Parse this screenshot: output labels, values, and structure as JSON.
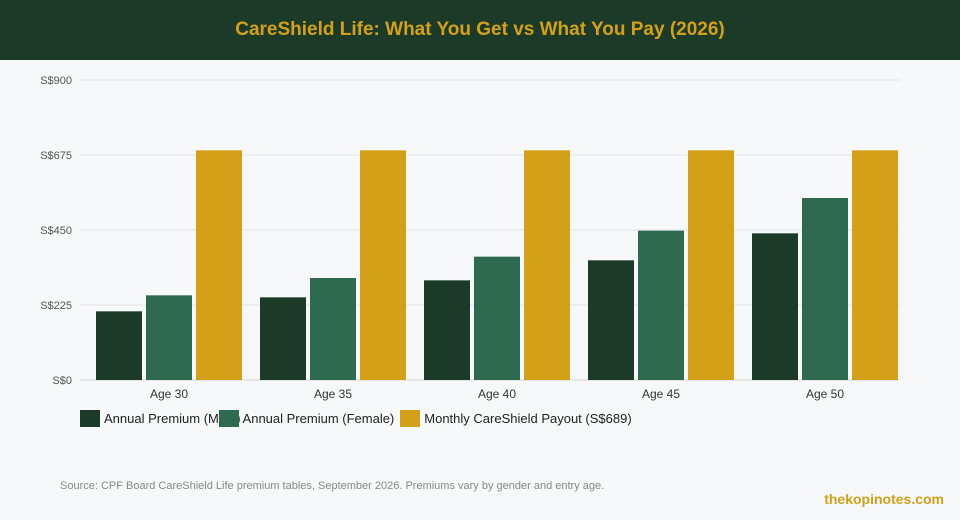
{
  "header": {
    "title": "CareShield Life: What You Get vs What You Pay (2026)"
  },
  "chart_data": {
    "type": "bar",
    "categories": [
      "Age 30",
      "Age 35",
      "Age 40",
      "Age 45",
      "Age 50"
    ],
    "series": [
      {
        "name": "Annual Premium (Male)",
        "color": "#1b3a28",
        "values": [
          206,
          248,
          299,
          359,
          440
        ]
      },
      {
        "name": "Annual Premium (Female)",
        "color": "#2d6a4f",
        "values": [
          254,
          306,
          370,
          448,
          546
        ]
      },
      {
        "name": "Monthly CareShield Payout (S$689)",
        "color": "#d4a017",
        "values": [
          689,
          689,
          689,
          689,
          689
        ]
      }
    ],
    "yticks": [
      "S$0",
      "S$225",
      "S$450",
      "S$675",
      "S$900"
    ],
    "ylim": [
      0,
      900
    ],
    "grid": true,
    "legend_position": "bottom-left"
  },
  "footer": {
    "source": "Source: CPF Board CareShield Life premium tables, September 2026. Premiums vary by gender and entry age.",
    "brand": "thekopinotes.com"
  }
}
